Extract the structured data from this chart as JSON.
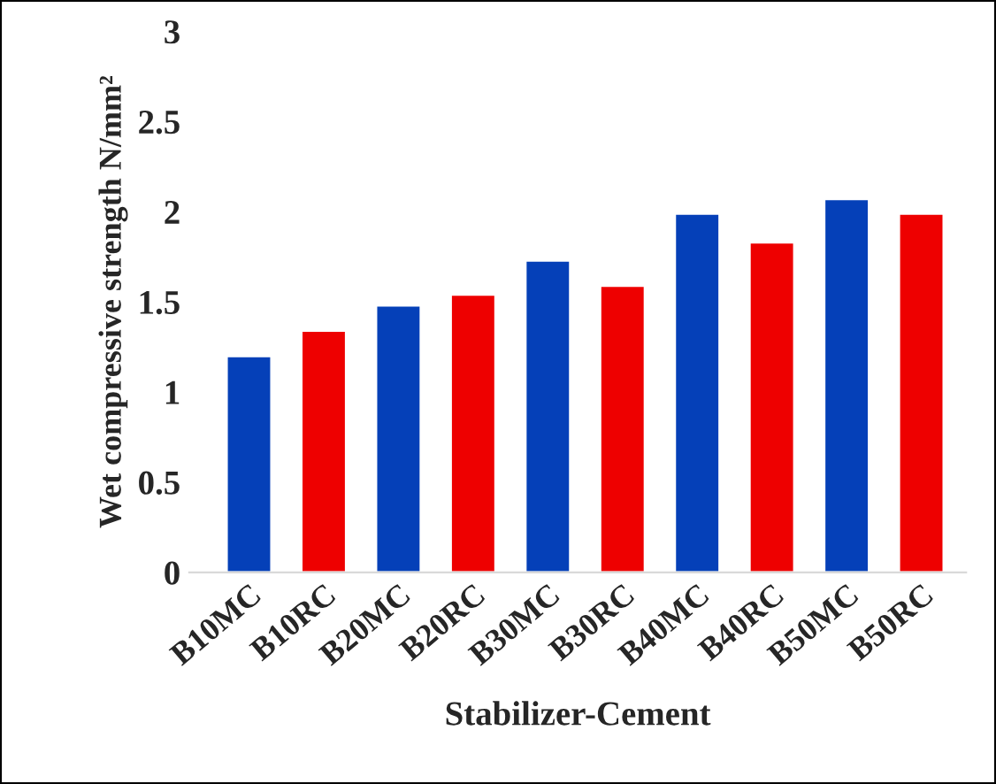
{
  "chart_data": {
    "type": "bar",
    "xlabel": "Stabilizer-Cement",
    "ylabel": "Wet compressive strength N/mm²",
    "categories": [
      "B10MC",
      "B10RC",
      "B20MC",
      "B20RC",
      "B30MC",
      "B30RC",
      "B40MC",
      "B40RC",
      "B50MC",
      "B50RC"
    ],
    "values": [
      1.2,
      1.34,
      1.48,
      1.54,
      1.73,
      1.59,
      1.99,
      1.83,
      2.07,
      1.99
    ],
    "colors": [
      "#0540b8",
      "#ee0000",
      "#0540b8",
      "#ee0000",
      "#0540b8",
      "#ee0000",
      "#0540b8",
      "#ee0000",
      "#0540b8",
      "#ee0000"
    ],
    "ylim": [
      0,
      3
    ],
    "yticks": [
      0,
      0.5,
      1,
      1.5,
      2,
      2.5,
      3
    ],
    "grid": false
  }
}
